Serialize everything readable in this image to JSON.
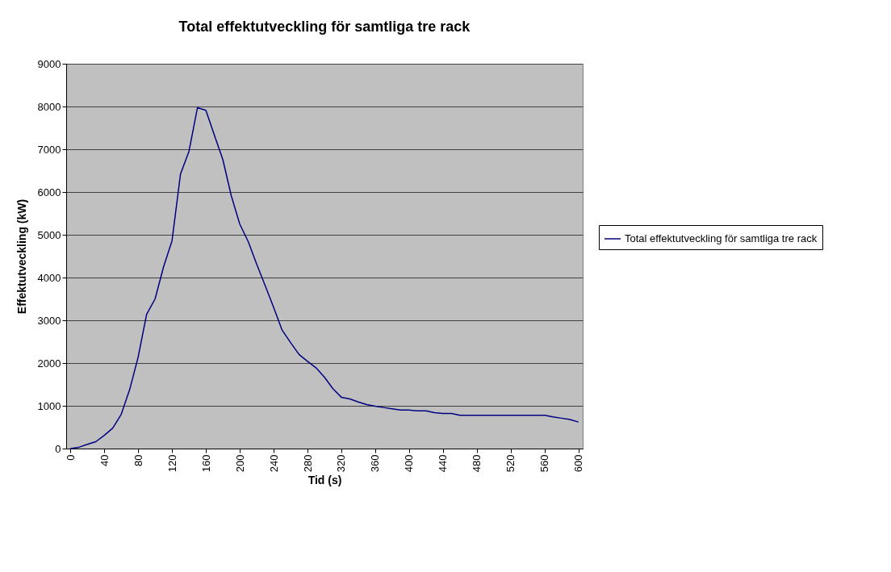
{
  "chart_data": {
    "type": "line",
    "title": "Total effektutveckling för samtliga tre rack",
    "xlabel": "Tid (s)",
    "ylabel": "Effektutveckling (kW)",
    "x": [
      0,
      10,
      20,
      30,
      40,
      50,
      60,
      70,
      80,
      90,
      100,
      110,
      120,
      130,
      140,
      150,
      160,
      170,
      180,
      190,
      200,
      210,
      220,
      230,
      240,
      250,
      260,
      270,
      280,
      290,
      300,
      310,
      320,
      330,
      340,
      350,
      360,
      370,
      380,
      390,
      400,
      410,
      420,
      430,
      440,
      450,
      460,
      470,
      480,
      490,
      500,
      510,
      520,
      530,
      540,
      550,
      560,
      570,
      580,
      590,
      600
    ],
    "series": [
      {
        "name": "Total effektutveckling för samtliga tre rack",
        "color": "#000080",
        "values": [
          0,
          30,
          100,
          160,
          310,
          480,
          800,
          1380,
          2140,
          3140,
          3500,
          4250,
          4860,
          6420,
          6950,
          7970,
          7910,
          7330,
          6760,
          5910,
          5250,
          4840,
          4310,
          3810,
          3300,
          2770,
          2480,
          2200,
          2040,
          1890,
          1670,
          1400,
          1200,
          1160,
          1090,
          1030,
          990,
          960,
          930,
          900,
          900,
          880,
          880,
          840,
          820,
          820,
          780,
          780,
          780,
          780,
          780,
          780,
          780,
          780,
          780,
          780,
          780,
          740,
          710,
          680,
          620
        ]
      }
    ],
    "xlim": [
      -5,
      605
    ],
    "xticks": [
      0,
      40,
      80,
      120,
      160,
      200,
      240,
      280,
      320,
      360,
      400,
      440,
      480,
      520,
      560,
      600
    ],
    "ylim": [
      0,
      9000
    ],
    "yticks": [
      0,
      1000,
      2000,
      3000,
      4000,
      5000,
      6000,
      7000,
      8000,
      9000
    ],
    "grid": "y",
    "legend": "right",
    "marker": "none",
    "line_style": "solid"
  }
}
